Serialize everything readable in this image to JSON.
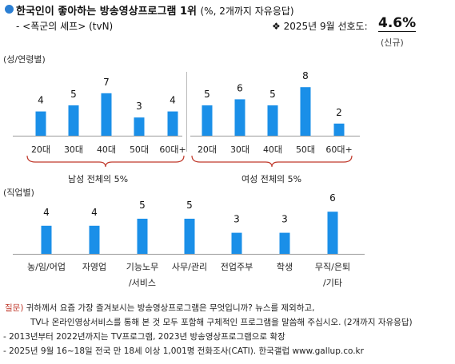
{
  "header": {
    "title": "한국인이 좋아하는 방송영상프로그램 1위",
    "title_note": "(%, 2개까지 자유응답)",
    "program": "- <폭군의 셰프> (tvN)",
    "pref_label": "❖  2025년 9월 선호도:",
    "pref_value": "4.6%",
    "pref_note": "(신규)"
  },
  "sections": {
    "gender_age": "(성/연령별)",
    "job": "(직업별)"
  },
  "groups": {
    "male": "남성 전체의 5%",
    "female": "여성 전체의 5%"
  },
  "colors": {
    "bar": "#1a8fe8",
    "bracket": "#c0392b",
    "title_dot": "#2b7fd3",
    "question_label": "#c0392b"
  },
  "chart_data": [
    {
      "type": "bar",
      "title": "(성/연령별)",
      "categories": [
        "20대",
        "30대",
        "40대",
        "50대",
        "60대+",
        "20대",
        "30대",
        "40대",
        "50대",
        "60대+"
      ],
      "series": [
        {
          "name": "남성",
          "values": [
            4,
            5,
            7,
            3,
            4,
            null,
            null,
            null,
            null,
            null
          ]
        },
        {
          "name": "여성",
          "values": [
            null,
            null,
            null,
            null,
            null,
            5,
            6,
            5,
            8,
            2
          ]
        }
      ],
      "values": [
        4,
        5,
        7,
        3,
        4,
        5,
        6,
        5,
        8,
        2
      ],
      "ylim": [
        0,
        8
      ],
      "grid": false
    },
    {
      "type": "bar",
      "title": "(직업별)",
      "categories": [
        "농/임/어업",
        "자영업",
        "기능노무\n/서비스",
        "사무/관리",
        "전업주부",
        "학생",
        "무직/은퇴\n/기타"
      ],
      "values": [
        4,
        4,
        5,
        5,
        3,
        3,
        6
      ],
      "ylim": [
        0,
        6
      ],
      "grid": false
    }
  ],
  "footer": {
    "question_label": "질문)",
    "question_1": "귀하께서 요즘 가장 즐겨보시는 방송영상프로그램은 무엇입니까? 뉴스를 제외하고,",
    "question_2": "TV나 온라인영상서비스를 통해 본 것 모두 포함해 구체적인 프로그램을 말씀해 주십시오. (2개까지 자유응답)",
    "note_1": "- 2013년부터 2022년까지는 TV프로그램, 2023년 방송영상프로그램으로 확장",
    "note_2": "- 2025년 9월 16~18일 전국 만 18세 이상 1,001명 전화조사(CATI). 한국갤럽 www.gallup.co.kr"
  }
}
